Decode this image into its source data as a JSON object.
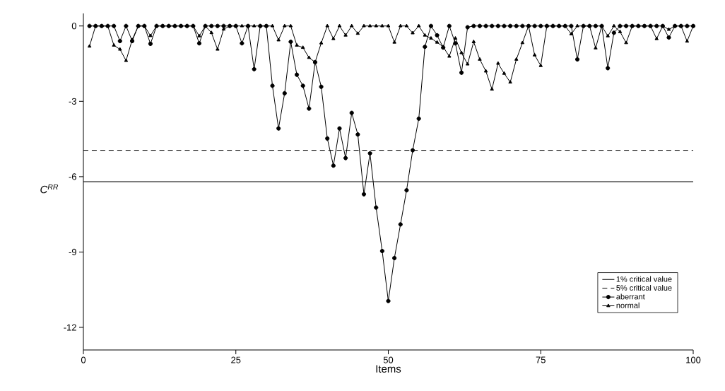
{
  "chart_data": {
    "type": "line",
    "xlabel": "Items",
    "ylabel": "C$^{RR}$",
    "x": [
      1,
      2,
      3,
      4,
      5,
      6,
      7,
      8,
      9,
      10,
      11,
      12,
      13,
      14,
      15,
      16,
      17,
      18,
      19,
      20,
      21,
      22,
      23,
      24,
      25,
      26,
      27,
      28,
      29,
      30,
      31,
      32,
      33,
      34,
      35,
      36,
      37,
      38,
      39,
      40,
      41,
      42,
      43,
      44,
      45,
      46,
      47,
      48,
      49,
      50,
      51,
      52,
      53,
      54,
      55,
      56,
      57,
      58,
      59,
      60,
      61,
      62,
      63,
      64,
      65,
      66,
      67,
      68,
      69,
      70,
      71,
      72,
      73,
      74,
      75,
      76,
      77,
      78,
      79,
      80,
      81,
      82,
      83,
      84,
      85,
      86,
      87,
      88,
      89,
      90,
      91,
      92,
      93,
      94,
      95,
      96,
      97,
      98,
      99,
      100
    ],
    "series": [
      {
        "name": "aberrant",
        "color": "#000000",
        "marker": "circle",
        "values": [
          0,
          0,
          0,
          0,
          0,
          -0.6,
          0,
          -0.6,
          0,
          0,
          -0.71,
          0,
          0,
          0,
          0,
          0,
          0,
          0,
          -0.69,
          0,
          0,
          0,
          0,
          0,
          0,
          -0.69,
          0,
          -1.72,
          0,
          0,
          -2.38,
          -4.08,
          -2.68,
          -0.63,
          -1.94,
          -2.38,
          -3.29,
          -1.44,
          -2.42,
          -4.48,
          -5.56,
          -4.08,
          -5.26,
          -3.46,
          -4.32,
          -6.7,
          -5.07,
          -7.23,
          -8.96,
          -10.95,
          -9.24,
          -7.9,
          -6.54,
          -4.95,
          -3.69,
          -0.83,
          0,
          -0.37,
          -0.86,
          0,
          -0.69,
          -1.86,
          -0.05,
          0,
          0,
          0,
          0,
          0,
          0,
          0,
          0,
          0,
          0,
          0,
          0,
          0,
          0,
          0,
          0,
          0,
          -1.33,
          0,
          0,
          0,
          0,
          -1.68,
          -0.27,
          0,
          0,
          0,
          0,
          0,
          0,
          0,
          0,
          -0.46,
          0,
          0,
          0,
          0
        ]
      },
      {
        "name": "normal",
        "color": "#000000",
        "marker": "triangle",
        "values": [
          -0.81,
          0,
          0,
          0,
          -0.77,
          -0.93,
          -1.38,
          -0.55,
          0,
          0,
          -0.39,
          0,
          0,
          0,
          0,
          0,
          0,
          0,
          -0.4,
          0,
          -0.27,
          -0.93,
          -0.13,
          0,
          0,
          0,
          0,
          0,
          0,
          0,
          0,
          -0.56,
          0,
          0,
          -0.77,
          -0.86,
          -1.26,
          -1.44,
          -0.68,
          0,
          -0.51,
          0,
          -0.37,
          0,
          -0.3,
          0,
          0,
          0,
          0,
          0,
          -0.65,
          0,
          0,
          -0.28,
          0,
          -0.37,
          -0.49,
          -0.65,
          -0.83,
          -1.21,
          -0.49,
          -1.07,
          -1.52,
          -0.63,
          -1.33,
          -1.8,
          -2.52,
          -1.49,
          -1.89,
          -2.24,
          -1.33,
          -0.67,
          0,
          -1.16,
          -1.58,
          0,
          0,
          0,
          0,
          -0.32,
          0,
          0,
          0,
          -0.88,
          0,
          -0.4,
          0,
          -0.23,
          -0.67,
          0,
          0,
          0,
          0,
          -0.51,
          0,
          -0.14,
          0,
          0,
          -0.61,
          0
        ]
      }
    ],
    "ref_lines": [
      {
        "axis": "y",
        "value": -6.2,
        "label": "1% critical value",
        "line_style": "solid",
        "color": "#000000"
      },
      {
        "axis": "y",
        "value": -4.95,
        "label": "5% critical value",
        "line_style": "dashed",
        "color": "#000000"
      }
    ],
    "xlim": [
      0,
      100
    ],
    "xticks": [
      0,
      25,
      50,
      75,
      100
    ],
    "ylim": [
      -12.9,
      0.5
    ],
    "yticks": [
      0,
      -3,
      -6,
      -9,
      -12
    ],
    "grid": false,
    "legend": "bottom right"
  }
}
